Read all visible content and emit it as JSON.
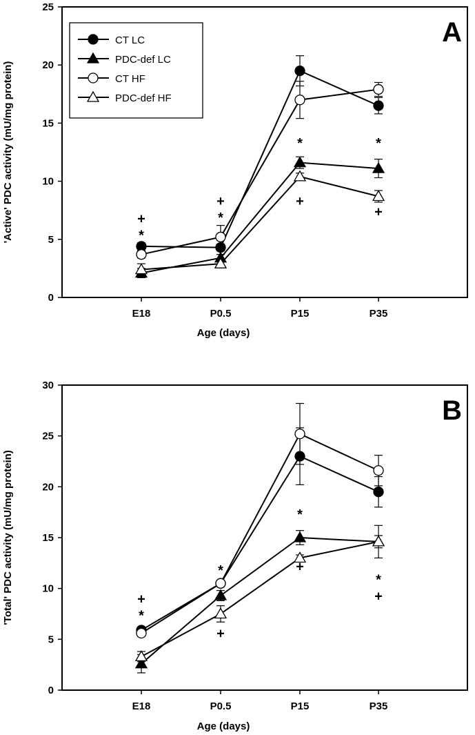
{
  "chart_data": [
    {
      "type": "line",
      "panel_label": "A",
      "xlabel": "Age (days)",
      "ylabel": "'Active' PDC activity (mU/mg protein)",
      "categories": [
        "E18",
        "P0.5",
        "P15",
        "P35"
      ],
      "ylim": [
        0,
        25
      ],
      "yticks": [
        0,
        5,
        10,
        15,
        20,
        25
      ],
      "legend": "top-left",
      "series": [
        {
          "name": "CT  LC",
          "marker": "filled-circle",
          "values": [
            4.4,
            4.3,
            19.5,
            16.5
          ],
          "errors": [
            0.3,
            0.3,
            1.3,
            0.7
          ]
        },
        {
          "name": "PDC-def LC",
          "marker": "filled-triangle",
          "values": [
            2.1,
            3.4,
            11.6,
            11.1
          ],
          "errors": [
            0.4,
            0.3,
            0.5,
            0.8
          ]
        },
        {
          "name": "CT  HF",
          "marker": "open-circle",
          "values": [
            3.7,
            5.2,
            17.0,
            17.9
          ],
          "errors": [
            0.3,
            1.0,
            1.6,
            0.6
          ]
        },
        {
          "name": "PDC-def HF",
          "marker": "open-triangle",
          "values": [
            2.4,
            2.9,
            10.4,
            8.7
          ],
          "errors": [
            0.5,
            0.2,
            0.3,
            0.5
          ]
        }
      ],
      "annotations": [
        {
          "x": "E18",
          "y": 6.8,
          "text": "+"
        },
        {
          "x": "E18",
          "y": 5.5,
          "text": "*"
        },
        {
          "x": "P0.5",
          "y": 8.3,
          "text": "+"
        },
        {
          "x": "P0.5",
          "y": 7.0,
          "text": "*"
        },
        {
          "x": "P15",
          "y": 13.3,
          "text": "*"
        },
        {
          "x": "P15",
          "y": 8.3,
          "text": "+"
        },
        {
          "x": "P35",
          "y": 13.3,
          "text": "*"
        },
        {
          "x": "P35",
          "y": 7.4,
          "text": "+"
        }
      ]
    },
    {
      "type": "line",
      "panel_label": "B",
      "xlabel": "Age (days)",
      "ylabel": "'Total' PDC activity (mU/mg protein)",
      "categories": [
        "E18",
        "P0.5",
        "P15",
        "P35"
      ],
      "ylim": [
        0,
        30
      ],
      "yticks": [
        0,
        5,
        10,
        15,
        20,
        25,
        30
      ],
      "series": [
        {
          "name": "CT  LC",
          "marker": "filled-circle",
          "values": [
            5.9,
            10.5,
            23.0,
            19.5
          ],
          "errors": [
            0.3,
            0.3,
            2.8,
            1.5
          ]
        },
        {
          "name": "PDC-def LC",
          "marker": "filled-triangle",
          "values": [
            2.6,
            9.3,
            15.0,
            14.6
          ],
          "errors": [
            0.9,
            0.5,
            0.7,
            0.6
          ]
        },
        {
          "name": "CT  HF",
          "marker": "open-circle",
          "values": [
            5.6,
            10.5,
            25.2,
            21.6
          ],
          "errors": [
            0.3,
            0.3,
            3.0,
            1.5
          ]
        },
        {
          "name": "PDC-def HF",
          "marker": "open-triangle",
          "values": [
            3.3,
            7.5,
            13.0,
            14.6
          ],
          "errors": [
            0.5,
            0.8,
            0.3,
            1.6
          ]
        }
      ],
      "annotations": [
        {
          "x": "E18",
          "y": 9.0,
          "text": "+"
        },
        {
          "x": "E18",
          "y": 7.7,
          "text": "*"
        },
        {
          "x": "P0.5",
          "y": 11.8,
          "text": "*"
        },
        {
          "x": "P0.5",
          "y": 5.6,
          "text": "+"
        },
        {
          "x": "P15",
          "y": 17.3,
          "text": "*"
        },
        {
          "x": "P15",
          "y": 12.2,
          "text": "+"
        },
        {
          "x": "P35",
          "y": 10.9,
          "text": "*"
        },
        {
          "x": "P35",
          "y": 9.8,
          "text": "+"
        }
      ]
    }
  ]
}
